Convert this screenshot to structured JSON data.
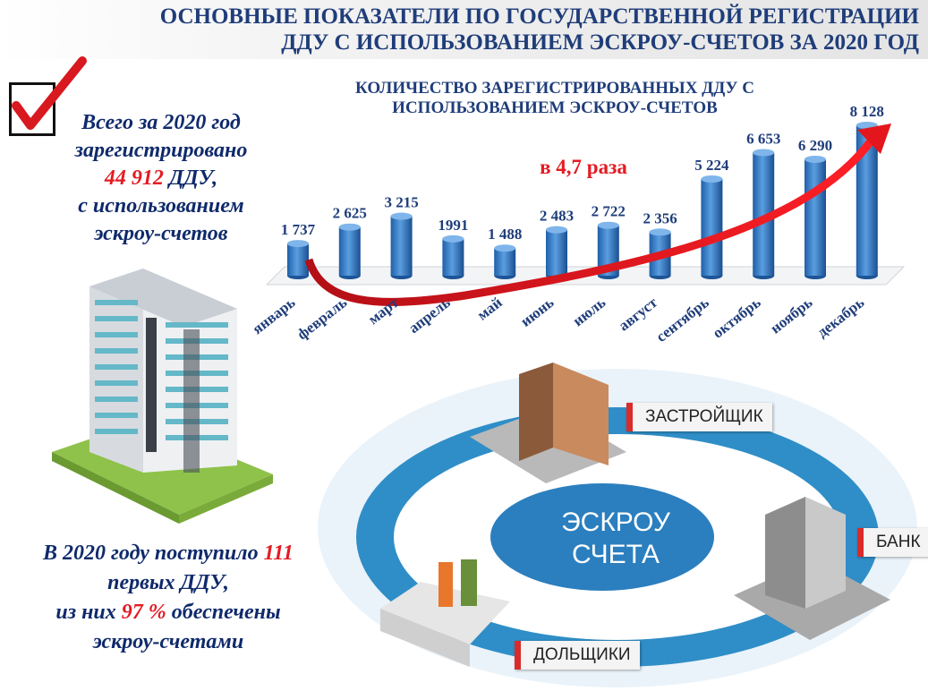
{
  "header": {
    "title_line1": "ОСНОВНЫЕ ПОКАЗАТЕЛИ ПО ГОСУДАРСТВЕННОЙ РЕГИСТРАЦИИ",
    "title_line2": "ДДУ С ИСПОЛЬЗОВАНИЕМ ЭСКРОУ-СЧЕТОВ ЗА 2020 ГОД"
  },
  "summary": {
    "line1": "Всего за 2020 год",
    "line2": "зарегистрировано",
    "total": "44 912",
    "total_unit": " ДДУ,",
    "line4": "с использованием",
    "line5": "эскроу-счетов"
  },
  "first_ddu": {
    "part1": "В 2020 году поступило ",
    "count": "111",
    "part2": "первых ДДУ,",
    "part3": "из них ",
    "percent": "97 %",
    "part4": " обеспечены",
    "part5": "эскроу-счетами"
  },
  "chart_data": {
    "type": "bar",
    "title_line1": "КОЛИЧЕСТВО ЗАРЕГИСТРИРОВАННЫХ ДДУ С",
    "title_line2": "ИСПОЛЬЗОВАНИЕМ ЭСКРОУ-СЧЕТОВ",
    "categories": [
      "январь",
      "февраль",
      "март",
      "апрель",
      "май",
      "июнь",
      "июль",
      "август",
      "сентябрь",
      "октябрь",
      "ноябрь",
      "декабрь"
    ],
    "values": [
      1737,
      2625,
      3215,
      1991,
      1488,
      2483,
      2722,
      2356,
      5224,
      6653,
      6290,
      8128
    ],
    "value_labels": [
      "1 737",
      "2 625",
      "3 215",
      "1991",
      "1 488",
      "2 483",
      "2 722",
      "2 356",
      "5 224",
      "6 653",
      "6 290",
      "8 128"
    ],
    "annotation": "в 4,7 раза",
    "ylim": [
      0,
      8500
    ],
    "grid": false,
    "bar_color": "#3d7fc6",
    "arrow_color": "#d9141b"
  },
  "diagram": {
    "center_line1": "ЭСКРОУ",
    "center_line2": "СЧЕТА",
    "labels": {
      "developer": "ЗАСТРОЙЩИК",
      "bank": "БАНК",
      "shareholders": "ДОЛЬЩИКИ"
    },
    "colors": {
      "ring": "#2f8ec7",
      "ring_light": "#dcecf6",
      "center": "#2b7fbf"
    }
  }
}
